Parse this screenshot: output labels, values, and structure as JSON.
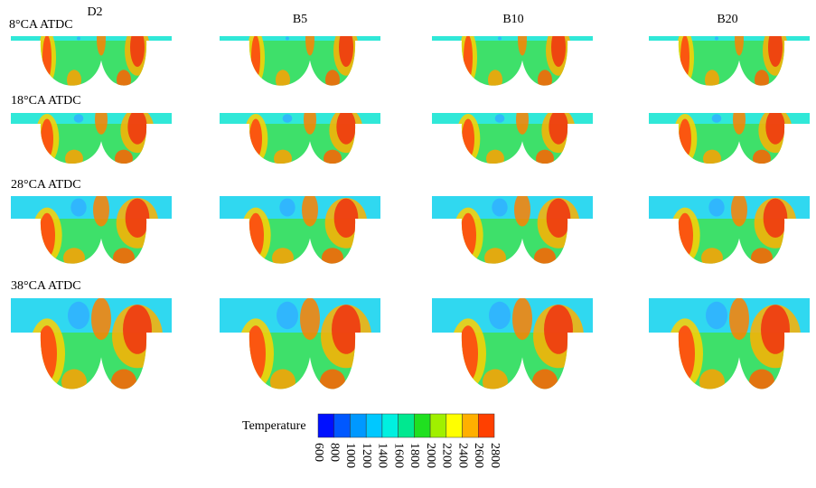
{
  "columns": [
    "D2",
    "B5",
    "B10",
    "B20"
  ],
  "rows": [
    "8°CA ATDC",
    "18°CA ATDC",
    "28°CA ATDC",
    "38°CA ATDC"
  ],
  "legend": {
    "title": "Temperature",
    "ticks": [
      600,
      800,
      1000,
      1200,
      1400,
      1600,
      1800,
      2000,
      2200,
      2400,
      2600,
      2800
    ]
  }
}
